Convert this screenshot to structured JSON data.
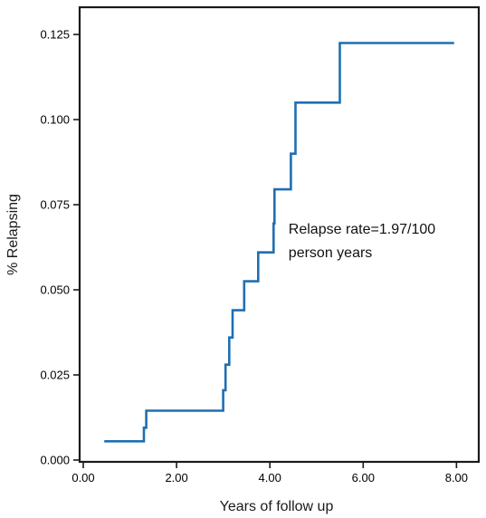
{
  "chart_data": {
    "type": "line",
    "step": true,
    "xlabel": "Years of follow up",
    "ylabel": "% Relapsing",
    "xlim": [
      0,
      8.4
    ],
    "ylim": [
      0,
      0.133
    ],
    "x_ticks": [
      0,
      2,
      4,
      6,
      8
    ],
    "x_tick_labels": [
      "0.00",
      "2.00",
      "4.00",
      "6.00",
      "8.00"
    ],
    "y_ticks": [
      0,
      0.025,
      0.05,
      0.075,
      0.1,
      0.125
    ],
    "y_tick_labels": [
      "0.000",
      "0.025",
      "0.050",
      "0.075",
      "0.100",
      "0.125"
    ],
    "grid": false,
    "line_color": "#1f6fb2",
    "annotation": {
      "lines": [
        "Relapse rate=1.97/100",
        "person years"
      ],
      "x": 4.4,
      "y": 0.0665
    },
    "series": [
      {
        "x": [
          0.45,
          1.3,
          1.3,
          1.35,
          2.5,
          3.0,
          3.05,
          3.13,
          3.2,
          3.45,
          3.75,
          4.08,
          4.1,
          4.45,
          4.55,
          5.5,
          7.95
        ],
        "y": [
          0.0055,
          0.0055,
          0.0095,
          0.0145,
          0.0145,
          0.0205,
          0.028,
          0.036,
          0.044,
          0.0525,
          0.061,
          0.0695,
          0.0795,
          0.09,
          0.105,
          0.1225,
          0.1225
        ]
      }
    ]
  }
}
